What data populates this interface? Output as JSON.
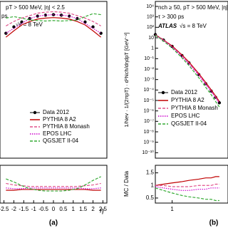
{
  "chart_data": [
    {
      "type": "line",
      "panel_label": "(a)",
      "xlabel": "η",
      "annotations": [
        "pT > 500 MeV, |η| < 2.5",
        "ps",
        "√s = 8 TeV"
      ],
      "x": [
        -2.4,
        -2,
        -1.6,
        -1.2,
        -0.8,
        -0.4,
        0,
        0.4,
        0.8,
        1.2,
        1.6,
        2,
        2.4
      ],
      "xlim": [
        -2.7,
        2.7
      ],
      "xticks": [
        -2.5,
        -2,
        -1.5,
        -1,
        -0.5,
        0,
        0.5,
        1,
        1.5,
        2,
        2.5
      ],
      "ylim": [
        0,
        3.2
      ],
      "yticks": [],
      "ratio_ylim": [
        0.8,
        1.3
      ],
      "ratio_yticks": [],
      "series": [
        {
          "name": "Data 2012",
          "color": "#000000",
          "style": "markers",
          "values": [
            2.55,
            2.68,
            2.78,
            2.85,
            2.9,
            2.92,
            2.93,
            2.92,
            2.9,
            2.85,
            2.78,
            2.68,
            2.55
          ]
        },
        {
          "name": "PYTHIA 8 A2",
          "color": "#c00000",
          "style": "solid",
          "values": [
            2.47,
            2.6,
            2.72,
            2.79,
            2.84,
            2.86,
            2.87,
            2.86,
            2.84,
            2.79,
            2.72,
            2.6,
            2.47
          ],
          "ratio": [
            0.97,
            0.97,
            0.98,
            0.98,
            0.98,
            0.98,
            0.98,
            0.98,
            0.98,
            0.98,
            0.98,
            0.97,
            0.97
          ]
        },
        {
          "name": "PYTHIA 8 Monash",
          "color": "#e0508a",
          "style": "dashed",
          "values": [
            2.7,
            2.79,
            2.86,
            2.91,
            2.96,
            2.98,
            2.99,
            2.98,
            2.96,
            2.91,
            2.86,
            2.79,
            2.7
          ],
          "ratio": [
            1.06,
            1.04,
            1.03,
            1.02,
            1.02,
            1.02,
            1.02,
            1.02,
            1.02,
            1.02,
            1.03,
            1.04,
            1.06
          ]
        },
        {
          "name": "EPOS LHC",
          "color": "#cc00cc",
          "style": "dotted",
          "values": [
            2.55,
            2.65,
            2.75,
            2.85,
            2.9,
            2.92,
            2.93,
            2.92,
            2.9,
            2.85,
            2.75,
            2.65,
            2.55
          ],
          "ratio": [
            1.0,
            0.99,
            0.99,
            1.0,
            1.0,
            1.0,
            1.0,
            1.0,
            1.0,
            1.0,
            0.99,
            0.99,
            1.0
          ]
        },
        {
          "name": "QGSJET II-04",
          "color": "#33aa33",
          "style": "dashed",
          "values": [
            2.86,
            2.89,
            2.86,
            2.82,
            2.81,
            2.8,
            2.81,
            2.8,
            2.81,
            2.82,
            2.89,
            2.95,
            2.93
          ],
          "ratio": [
            1.12,
            1.08,
            1.03,
            0.99,
            0.97,
            0.96,
            0.96,
            0.96,
            0.97,
            0.99,
            1.04,
            1.1,
            1.15
          ]
        }
      ]
    },
    {
      "type": "line",
      "panel_label": "(b)",
      "ylabel": "1/Nev · 1/(2πpT) · d²Nch/dηdpT [GeV⁻²]",
      "ratio_ylabel": "MC / Data",
      "annotations": [
        "nch ≥ 50, pT > 500 MeV, |η| < 2.5",
        "τ > 300 ps",
        "ATLAS",
        "√s = 8 TeV"
      ],
      "xlog": true,
      "ylog": true,
      "x": [
        0.5,
        0.7,
        1,
        1.5,
        2,
        3,
        4,
        5,
        6,
        7
      ],
      "xlim": [
        0.5,
        10
      ],
      "xticks": [
        1
      ],
      "ylim": [
        3e-11,
        30000
      ],
      "yticks": [
        {
          "value": 10000,
          "label": "10⁴"
        },
        {
          "value": 1000,
          "label": "10³"
        },
        {
          "value": 100,
          "label": "10²"
        },
        10,
        1,
        {
          "value": 0.1,
          "label": "10⁻¹"
        },
        {
          "value": 0.01,
          "label": "10⁻²"
        },
        {
          "value": 0.001,
          "label": "10⁻³"
        },
        {
          "value": 0.0001,
          "label": "10⁻⁴"
        },
        {
          "value": 1e-05,
          "label": "10⁻⁵"
        },
        {
          "value": 1e-06,
          "label": "10⁻⁶"
        },
        {
          "value": 1e-07,
          "label": "10⁻⁷"
        },
        {
          "value": 1e-08,
          "label": "10⁻⁸"
        },
        {
          "value": 1e-09,
          "label": "10⁻⁹"
        },
        {
          "value": 1e-10,
          "label": "10⁻¹⁰"
        }
      ],
      "ratio_ylim": [
        0.3,
        1.8
      ],
      "ratio_yticks": [
        0.5,
        1,
        1.5
      ],
      "series": [
        {
          "name": "Data 2012",
          "color": "#000000",
          "style": "markers",
          "values": [
            20,
            6,
            1.5,
            0.2,
            0.04,
            0.003,
            0.0004,
            8e-05,
            2e-05,
            6e-06
          ]
        },
        {
          "name": "PYTHIA 8 A2",
          "color": "#c00000",
          "style": "solid",
          "values": [
            20,
            6.3,
            1.65,
            0.23,
            0.048,
            0.00375,
            0.00052,
            0.000104,
            2.7e-05,
            8.1e-06
          ],
          "ratio": [
            1.0,
            1.05,
            1.1,
            1.15,
            1.2,
            1.25,
            1.3,
            1.3,
            1.35,
            1.35
          ]
        },
        {
          "name": "PYTHIA 8 Monash",
          "color": "#e0508a",
          "style": "dashed",
          "values": [
            20,
            6,
            1.4,
            0.19,
            0.038,
            0.003,
            0.0004,
            8e-05,
            2.1e-05,
            6.3e-06
          ],
          "ratio": [
            1.0,
            1.0,
            0.95,
            0.95,
            0.95,
            1.0,
            1.0,
            1.0,
            1.05,
            1.05
          ]
        },
        {
          "name": "EPOS LHC",
          "color": "#cc00cc",
          "style": "dotted",
          "values": [
            19,
            5.4,
            1.3,
            0.16,
            0.032,
            0.0026,
            0.00034,
            7.2e-05,
            1.8e-05,
            5.4e-06
          ],
          "ratio": [
            0.95,
            0.9,
            0.85,
            0.8,
            0.8,
            0.85,
            0.85,
            0.9,
            0.9,
            0.9
          ]
        },
        {
          "name": "QGSJET II-04",
          "color": "#33aa33",
          "style": "dashed",
          "values": [
            18,
            4.8,
            1.05,
            0.12,
            0.022,
            0.0015,
            0.00018,
            3.6e-05,
            8e-06,
            2.4e-06
          ],
          "ratio": [
            0.9,
            0.8,
            0.7,
            0.6,
            0.55,
            0.5,
            0.45,
            0.45,
            0.4,
            0.4
          ]
        }
      ]
    }
  ]
}
